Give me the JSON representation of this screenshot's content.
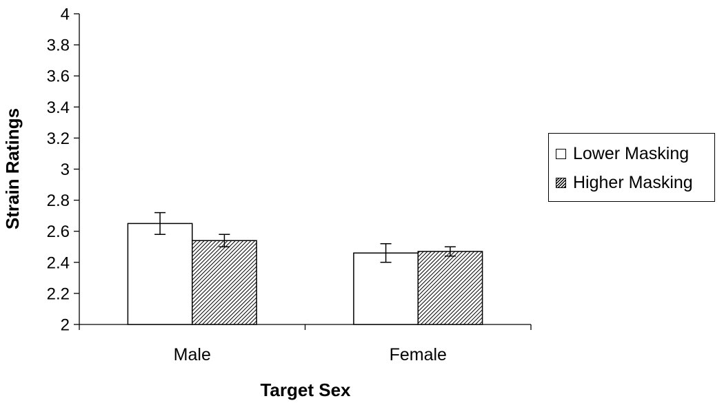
{
  "chart_data": {
    "type": "bar",
    "categories": [
      "Male",
      "Female"
    ],
    "series": [
      {
        "name": "Lower Masking",
        "values": [
          2.65,
          2.46
        ],
        "error": [
          0.07,
          0.06
        ],
        "pattern": "solid-white"
      },
      {
        "name": "Higher Masking",
        "values": [
          2.54,
          2.47
        ],
        "error": [
          0.04,
          0.03
        ],
        "pattern": "diagonal-hatch"
      }
    ],
    "xlabel": "Target Sex",
    "ylabel": "Strain Ratings",
    "ylim": [
      2,
      4
    ],
    "yticks": [
      "2",
      "2.2",
      "2.4",
      "2.6",
      "2.8",
      "3",
      "3.2",
      "3.4",
      "3.6",
      "3.8",
      "4"
    ],
    "grid": false,
    "legend_position": "right",
    "colors": {
      "bar_fill": "#ffffff",
      "bar_edge": "#000000",
      "hatch": "#000000"
    }
  }
}
